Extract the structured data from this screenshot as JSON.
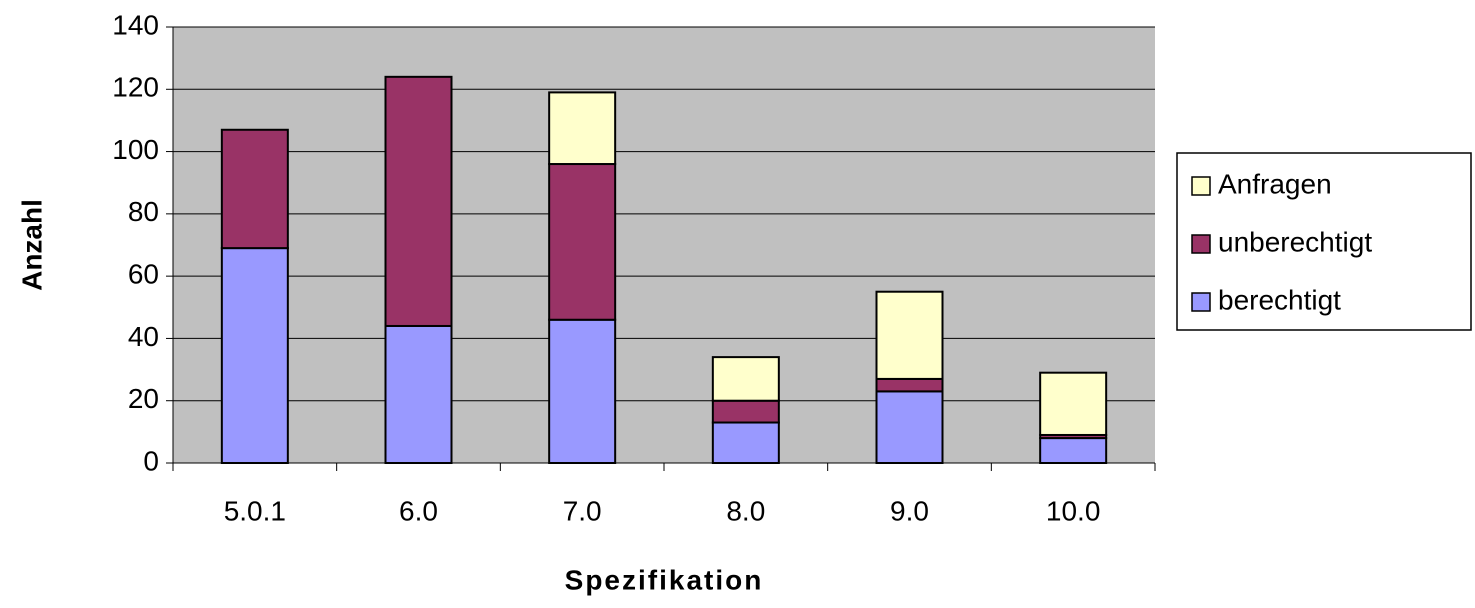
{
  "chart_data": {
    "type": "stacked_bar",
    "x_label": "Spezifikation",
    "y_label": "Anzahl",
    "categories": [
      "5.0.1",
      "6.0",
      "7.0",
      "8.0",
      "9.0",
      "10.0"
    ],
    "series": [
      {
        "name": "berechtigt",
        "color": "#9999ff",
        "values": [
          69,
          44,
          46,
          13,
          23,
          8
        ]
      },
      {
        "name": "unberechtigt",
        "color": "#993366",
        "values": [
          38,
          80,
          50,
          7,
          4,
          1
        ]
      },
      {
        "name": "Anfragen",
        "color": "#ffffcc",
        "values": [
          0,
          0,
          23,
          14,
          28,
          20
        ]
      }
    ],
    "ylim": [
      0,
      140
    ],
    "yticks": [
      0,
      20,
      40,
      60,
      80,
      100,
      120,
      140
    ],
    "grid": true,
    "plot_background": "#c0c0c0",
    "legend": "right"
  }
}
